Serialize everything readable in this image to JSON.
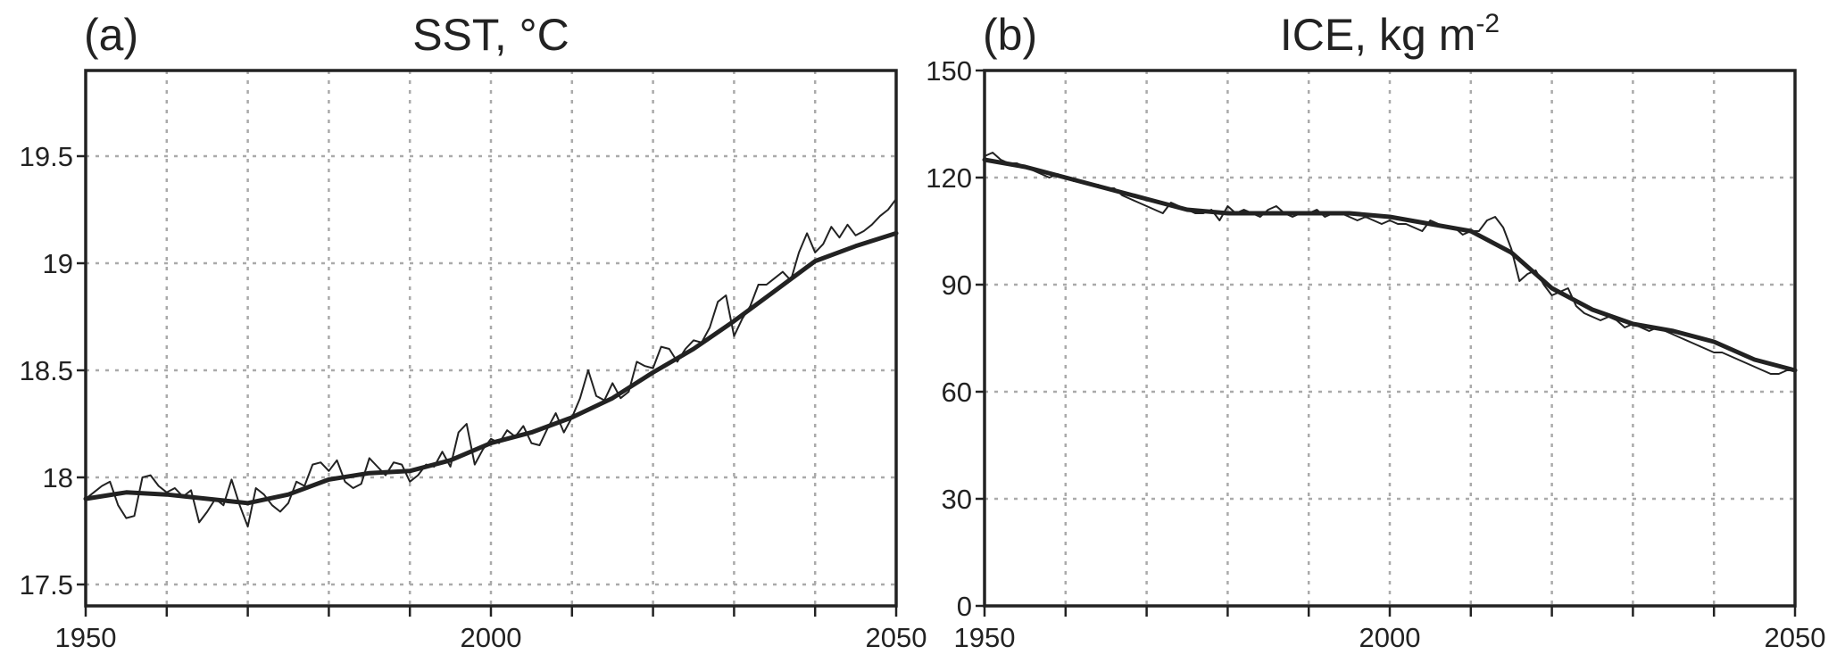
{
  "chart_data": [
    {
      "type": "line",
      "panel_label": "(a)",
      "title": "SST, °C",
      "xlim": [
        1950,
        2050
      ],
      "xticks": [
        1950,
        2000,
        2050
      ],
      "xminorticks": [
        1960,
        1970,
        1980,
        1990,
        2010,
        2020,
        2030,
        2040
      ],
      "ylim": [
        17.4,
        19.9
      ],
      "yticks": [
        17.5,
        18,
        18.5,
        19,
        19.5
      ],
      "grid": true,
      "series": [
        {
          "color": "#222222",
          "width": 2,
          "x": [
            1950,
            1951,
            1952,
            1953,
            1954,
            1955,
            1956,
            1957,
            1958,
            1959,
            1960,
            1961,
            1962,
            1963,
            1964,
            1965,
            1966,
            1967,
            1968,
            1969,
            1970,
            1971,
            1972,
            1973,
            1974,
            1975,
            1976,
            1977,
            1978,
            1979,
            1980,
            1981,
            1982,
            1983,
            1984,
            1985,
            1986,
            1987,
            1988,
            1989,
            1990,
            1991,
            1992,
            1993,
            1994,
            1995,
            1996,
            1997,
            1998,
            1999,
            2000,
            2001,
            2002,
            2003,
            2004,
            2005,
            2006,
            2007,
            2008,
            2009,
            2010,
            2011,
            2012,
            2013,
            2014,
            2015,
            2016,
            2017,
            2018,
            2019,
            2020,
            2021,
            2022,
            2023,
            2024,
            2025,
            2026,
            2027,
            2028,
            2029,
            2030,
            2031,
            2032,
            2033,
            2034,
            2035,
            2036,
            2037,
            2038,
            2039,
            2040,
            2041,
            2042,
            2043,
            2044,
            2045,
            2046,
            2047,
            2048,
            2049,
            2050
          ],
          "values": [
            17.9,
            17.93,
            17.96,
            17.98,
            17.87,
            17.81,
            17.82,
            18.0,
            18.01,
            17.96,
            17.93,
            17.95,
            17.91,
            17.94,
            17.79,
            17.84,
            17.9,
            17.87,
            17.99,
            17.87,
            17.77,
            17.95,
            17.92,
            17.87,
            17.84,
            17.88,
            17.98,
            17.96,
            18.06,
            18.07,
            18.03,
            18.08,
            17.98,
            17.95,
            17.97,
            18.09,
            18.05,
            18.01,
            18.07,
            18.06,
            17.98,
            18.01,
            18.06,
            18.05,
            18.12,
            18.05,
            18.21,
            18.25,
            18.06,
            18.13,
            18.18,
            18.16,
            18.22,
            18.19,
            18.24,
            18.16,
            18.15,
            18.23,
            18.3,
            18.21,
            18.28,
            18.37,
            18.5,
            18.38,
            18.36,
            18.44,
            18.37,
            18.4,
            18.54,
            18.52,
            18.51,
            18.61,
            18.6,
            18.54,
            18.6,
            18.64,
            18.63,
            18.7,
            18.82,
            18.85,
            18.66,
            18.74,
            18.8,
            18.9,
            18.9,
            18.93,
            18.96,
            18.92,
            19.05,
            19.14,
            19.05,
            19.09,
            19.17,
            19.12,
            19.18,
            19.13,
            19.15,
            19.18,
            19.22,
            19.25,
            19.3
          ]
        },
        {
          "color": "#222222",
          "width": 5,
          "x": [
            1950,
            1955,
            1960,
            1965,
            1970,
            1975,
            1980,
            1985,
            1990,
            1995,
            2000,
            2005,
            2010,
            2015,
            2020,
            2025,
            2030,
            2035,
            2040,
            2045,
            2050
          ],
          "values": [
            17.9,
            17.93,
            17.92,
            17.9,
            17.88,
            17.92,
            17.99,
            18.02,
            18.03,
            18.08,
            18.16,
            18.21,
            18.28,
            18.37,
            18.49,
            18.6,
            18.73,
            18.87,
            19.01,
            19.08,
            19.14
          ]
        }
      ]
    },
    {
      "type": "line",
      "panel_label": "(b)",
      "title": "ICE, kg m",
      "title_superscript": "-2",
      "xlim": [
        1950,
        2050
      ],
      "xticks": [
        1950,
        2000,
        2050
      ],
      "xminorticks": [
        1960,
        1970,
        1980,
        1990,
        2010,
        2020,
        2030,
        2040
      ],
      "ylim": [
        0,
        150
      ],
      "yticks": [
        0,
        30,
        60,
        90,
        120,
        150
      ],
      "grid": true,
      "series": [
        {
          "color": "#222222",
          "width": 2,
          "x": [
            1950,
            1951,
            1952,
            1953,
            1954,
            1955,
            1956,
            1957,
            1958,
            1959,
            1960,
            1961,
            1962,
            1963,
            1964,
            1965,
            1966,
            1967,
            1968,
            1969,
            1970,
            1971,
            1972,
            1973,
            1974,
            1975,
            1976,
            1977,
            1978,
            1979,
            1980,
            1981,
            1982,
            1983,
            1984,
            1985,
            1986,
            1987,
            1988,
            1989,
            1990,
            1991,
            1992,
            1993,
            1994,
            1995,
            1996,
            1997,
            1998,
            1999,
            2000,
            2001,
            2002,
            2003,
            2004,
            2005,
            2006,
            2007,
            2008,
            2009,
            2010,
            2011,
            2012,
            2013,
            2014,
            2015,
            2016,
            2017,
            2018,
            2019,
            2020,
            2021,
            2022,
            2023,
            2024,
            2025,
            2026,
            2027,
            2028,
            2029,
            2030,
            2031,
            2032,
            2033,
            2034,
            2035,
            2036,
            2037,
            2038,
            2039,
            2040,
            2041,
            2042,
            2043,
            2044,
            2045,
            2046,
            2047,
            2048,
            2049,
            2050
          ],
          "values": [
            126,
            127,
            125,
            124,
            124,
            123,
            122,
            121,
            120,
            121,
            120,
            119,
            119,
            118,
            118,
            117,
            117,
            115,
            114,
            113,
            112,
            111,
            110,
            113,
            112,
            111,
            110,
            110,
            111,
            108,
            112,
            110,
            111,
            110,
            109,
            111,
            112,
            110,
            109,
            110,
            110,
            111,
            109,
            110,
            110,
            109,
            108,
            109,
            108,
            107,
            108,
            107,
            107,
            106,
            105,
            108,
            107,
            106,
            106,
            104,
            105,
            105,
            108,
            109,
            106,
            100,
            91,
            93,
            94,
            90,
            87,
            88,
            89,
            84,
            82,
            81,
            80,
            81,
            80,
            78,
            79,
            78,
            77,
            78,
            77,
            76,
            75,
            74,
            73,
            72,
            71,
            71,
            70,
            69,
            68,
            67,
            66,
            65,
            65,
            66,
            66
          ]
        },
        {
          "color": "#222222",
          "width": 5,
          "x": [
            1950,
            1955,
            1960,
            1965,
            1970,
            1975,
            1980,
            1985,
            1990,
            1995,
            2000,
            2005,
            2010,
            2015,
            2020,
            2025,
            2030,
            2035,
            2040,
            2045,
            2050
          ],
          "values": [
            125,
            123,
            120,
            117,
            114,
            111,
            110,
            110,
            110,
            110,
            109,
            107,
            105,
            99,
            89,
            83,
            79,
            77,
            74,
            69,
            66
          ]
        }
      ]
    }
  ]
}
